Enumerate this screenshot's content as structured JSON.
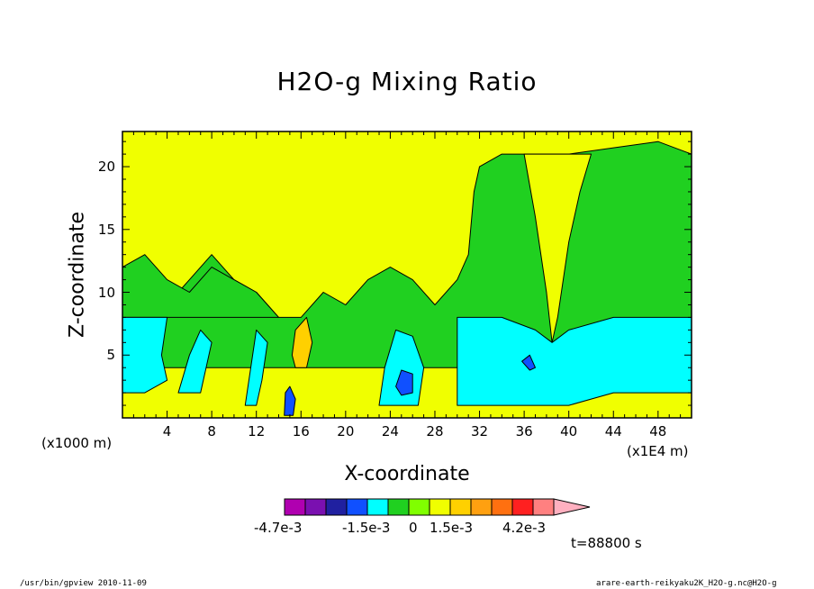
{
  "chart_data": {
    "type": "heatmap",
    "title": "H2O-g Mixing Ratio",
    "xlabel": "X-coordinate",
    "ylabel": "Z-coordinate",
    "x_unit_left": "(x1000 m)",
    "x_unit_right": "(x1E4 m)",
    "x_ticks": [
      "4",
      "8",
      "12",
      "16",
      "20",
      "24",
      "28",
      "32",
      "36",
      "40",
      "44",
      "48"
    ],
    "x_tick_values": [
      4,
      8,
      12,
      16,
      20,
      24,
      28,
      32,
      36,
      40,
      44,
      48
    ],
    "y_ticks": [
      "5",
      "10",
      "15",
      "20"
    ],
    "y_tick_values": [
      5,
      10,
      15,
      20
    ],
    "xlim": [
      0,
      51
    ],
    "ylim": [
      0,
      22.8
    ],
    "colorbar_labels": [
      "-4.7e-3",
      "-1.5e-3",
      "0",
      "1.5e-3",
      "4.2e-3"
    ],
    "colorbar_colors": [
      "#b000b0",
      "#7a10b0",
      "#2020a0",
      "#1050ff",
      "#00ffff",
      "#20d020",
      "#80ff00",
      "#f0ff00",
      "#ffd000",
      "#ffa010",
      "#ff7010",
      "#ff2020",
      "#ff8080",
      "#ffb0c0"
    ],
    "time_label": "t=88800 s",
    "regions": [
      {
        "name": "green-layer",
        "color": "#20d020",
        "points": [
          [
            0,
            8
          ],
          [
            2,
            8
          ],
          [
            3,
            11
          ],
          [
            5,
            10
          ],
          [
            6,
            11
          ],
          [
            8,
            13
          ],
          [
            10,
            11
          ],
          [
            12,
            10
          ],
          [
            14,
            8
          ],
          [
            16,
            8
          ],
          [
            18,
            10
          ],
          [
            20,
            9
          ],
          [
            22,
            11
          ],
          [
            24,
            12
          ],
          [
            26,
            11
          ],
          [
            28,
            9
          ],
          [
            30,
            11
          ],
          [
            31,
            13
          ],
          [
            31.5,
            18
          ],
          [
            32,
            20
          ],
          [
            34,
            21
          ],
          [
            40,
            21
          ],
          [
            44,
            21.5
          ],
          [
            48,
            22
          ],
          [
            51,
            21
          ],
          [
            51,
            4
          ],
          [
            0,
            4
          ]
        ]
      },
      {
        "name": "green-lower-left",
        "color": "#20d020",
        "points": [
          [
            0,
            8
          ],
          [
            0,
            12
          ],
          [
            2,
            13
          ],
          [
            4,
            11
          ],
          [
            6,
            10
          ],
          [
            8,
            12
          ],
          [
            10,
            11
          ],
          [
            12,
            10
          ],
          [
            14,
            8
          ]
        ]
      },
      {
        "name": "yellow-wedge",
        "color": "#f0ff00",
        "points": [
          [
            36,
            21
          ],
          [
            37,
            16
          ],
          [
            38,
            10
          ],
          [
            38.5,
            6
          ],
          [
            39,
            8
          ],
          [
            40,
            14
          ],
          [
            41,
            18
          ],
          [
            42,
            21
          ]
        ]
      },
      {
        "name": "cyan-left",
        "color": "#00ffff",
        "points": [
          [
            0,
            2
          ],
          [
            0,
            8
          ],
          [
            4,
            8
          ],
          [
            3.5,
            5
          ],
          [
            4,
            3
          ],
          [
            2,
            2
          ]
        ]
      },
      {
        "name": "cyan-mid",
        "color": "#00ffff",
        "points": [
          [
            5,
            2
          ],
          [
            6,
            5
          ],
          [
            7,
            7
          ],
          [
            8,
            6
          ],
          [
            7.5,
            4
          ],
          [
            7,
            2
          ]
        ]
      },
      {
        "name": "cyan-12",
        "color": "#00ffff",
        "points": [
          [
            11,
            1
          ],
          [
            11.5,
            4
          ],
          [
            12,
            7
          ],
          [
            13,
            6
          ],
          [
            12.5,
            3
          ],
          [
            12,
            1
          ]
        ]
      },
      {
        "name": "cyan-26",
        "color": "#00ffff",
        "points": [
          [
            23,
            1
          ],
          [
            23.5,
            4
          ],
          [
            24.5,
            7
          ],
          [
            26,
            6.5
          ],
          [
            27,
            4
          ],
          [
            26.5,
            1
          ]
        ]
      },
      {
        "name": "cyan-right",
        "color": "#00ffff",
        "points": [
          [
            30,
            1
          ],
          [
            30,
            8
          ],
          [
            34,
            8
          ],
          [
            37,
            7
          ],
          [
            38.5,
            6
          ],
          [
            40,
            7
          ],
          [
            44,
            8
          ],
          [
            51,
            8
          ],
          [
            51,
            2
          ],
          [
            44,
            2
          ],
          [
            40,
            1
          ],
          [
            37,
            1
          ]
        ]
      },
      {
        "name": "orange-16",
        "color": "#ffd000",
        "points": [
          [
            15.2,
            5
          ],
          [
            15.5,
            7
          ],
          [
            16.5,
            8
          ],
          [
            17,
            6
          ],
          [
            16.5,
            4
          ],
          [
            15.5,
            4
          ]
        ]
      },
      {
        "name": "blue-15",
        "color": "#1050ff",
        "points": [
          [
            14.5,
            0.2
          ],
          [
            14.6,
            2
          ],
          [
            15,
            2.5
          ],
          [
            15.5,
            1.5
          ],
          [
            15.3,
            0.2
          ]
        ]
      },
      {
        "name": "blue-26",
        "color": "#1050ff",
        "points": [
          [
            24.5,
            2.5
          ],
          [
            25,
            3.8
          ],
          [
            26,
            3.5
          ],
          [
            26,
            2
          ],
          [
            25,
            1.8
          ]
        ]
      },
      {
        "name": "blue-36",
        "color": "#1050ff",
        "points": [
          [
            35.8,
            4.5
          ],
          [
            36.5,
            5
          ],
          [
            37,
            4
          ],
          [
            36.5,
            3.8
          ]
        ]
      }
    ]
  },
  "footer": {
    "left": "/usr/bin/gpview  2010-11-09",
    "right": "arare-earth-reikyaku2K_H2O-g.nc@H2O-g"
  }
}
